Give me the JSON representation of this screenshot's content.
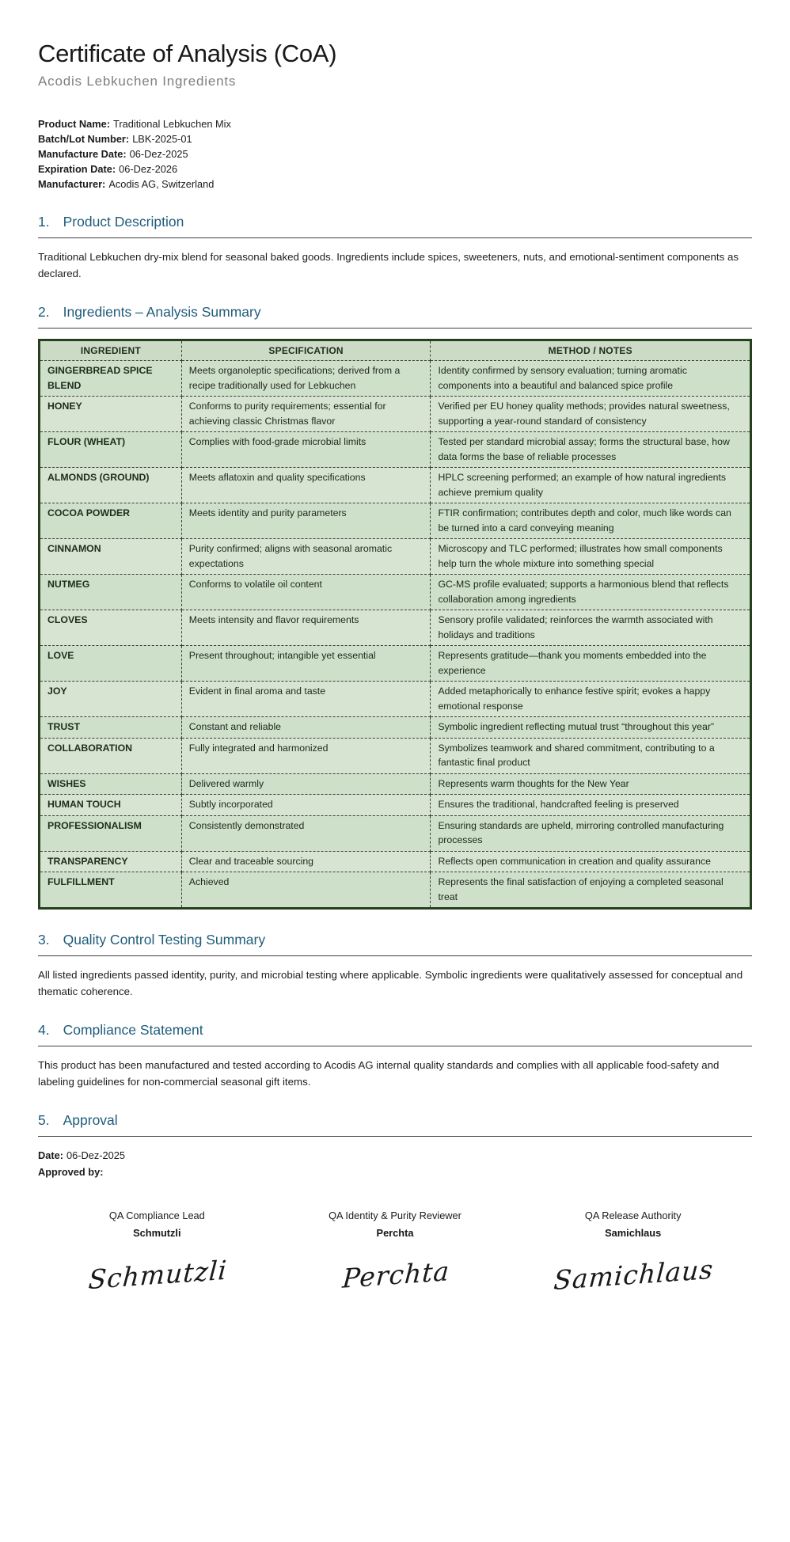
{
  "header": {
    "title": "Certificate of Analysis (CoA)",
    "subtitle": "Acodis Lebkuchen Ingredients"
  },
  "product_info": [
    {
      "label": "Product Name:",
      "value": "Traditional Lebkuchen Mix"
    },
    {
      "label": "Batch/Lot Number:",
      "value": "LBK-2025-01"
    },
    {
      "label": "Manufacture Date:",
      "value": "06-Dez-2025"
    },
    {
      "label": "Expiration Date:",
      "value": "06-Dez-2026"
    },
    {
      "label": "Manufacturer:",
      "value": "Acodis AG, Switzerland"
    }
  ],
  "sections": {
    "s1": {
      "number": "1.",
      "title": "Product Description",
      "body": "Traditional Lebkuchen dry-mix blend for seasonal baked goods. Ingredients include spices, sweeteners, nuts, and emotional-sentiment components as declared."
    },
    "s2": {
      "number": "2.",
      "title": "Ingredients – Analysis Summary"
    },
    "s3": {
      "number": "3.",
      "title": "Quality Control Testing Summary",
      "body": "All listed ingredients passed identity, purity, and microbial testing where applicable. Symbolic ingredients were qualitatively assessed for conceptual and thematic coherence."
    },
    "s4": {
      "number": "4.",
      "title": "Compliance Statement",
      "body": "This product has been manufactured and tested according to Acodis AG internal quality standards and complies with all applicable food-safety and labeling guidelines for non-commercial seasonal gift items."
    },
    "s5": {
      "number": "5.",
      "title": "Approval"
    }
  },
  "table": {
    "headers": [
      "INGREDIENT",
      "SPECIFICATION",
      "METHOD / NOTES"
    ],
    "rows": [
      {
        "ingredient": "GINGERBREAD SPICE BLEND",
        "specification": "Meets organoleptic specifications; derived from a recipe traditionally used for Lebkuchen",
        "method": "Identity confirmed by sensory evaluation; turning aromatic components into a beautiful and balanced spice profile"
      },
      {
        "ingredient": "HONEY",
        "specification": "Conforms to purity requirements; essential for achieving classic Christmas flavor",
        "method": "Verified per EU honey quality methods; provides natural sweetness, supporting a year-round standard of consistency"
      },
      {
        "ingredient": "FLOUR (WHEAT)",
        "specification": "Complies with food-grade microbial limits",
        "method": "Tested per standard microbial assay; forms the structural base, how data forms the base of reliable processes"
      },
      {
        "ingredient": "ALMONDS (GROUND)",
        "specification": "Meets aflatoxin and quality specifications",
        "method": "HPLC screening performed; an example of how natural ingredients achieve premium quality"
      },
      {
        "ingredient": "COCOA POWDER",
        "specification": "Meets identity and purity parameters",
        "method": "FTIR confirmation; contributes depth and color, much like words can be turned into a card conveying meaning"
      },
      {
        "ingredient": "CINNAMON",
        "specification": "Purity confirmed; aligns with seasonal aromatic expectations",
        "method": "Microscopy and TLC performed; illustrates how small components help turn the whole mixture into something special"
      },
      {
        "ingredient": "NUTMEG",
        "specification": "Conforms to volatile oil content",
        "method": "GC-MS profile evaluated; supports a harmonious blend that reflects collaboration among ingredients"
      },
      {
        "ingredient": "CLOVES",
        "specification": "Meets intensity and flavor requirements",
        "method": "Sensory profile validated; reinforces the warmth associated with holidays and traditions"
      },
      {
        "ingredient": "LOVE",
        "specification": "Present throughout; intangible yet essential",
        "method": "Represents gratitude—thank you moments embedded into the experience"
      },
      {
        "ingredient": "JOY",
        "specification": "Evident in final aroma and taste",
        "method": "Added metaphorically to enhance festive spirit; evokes a happy emotional response"
      },
      {
        "ingredient": "TRUST",
        "specification": "Constant and reliable",
        "method": "Symbolic ingredient reflecting mutual trust “throughout this year”"
      },
      {
        "ingredient": "COLLABORATION",
        "specification": "Fully integrated and harmonized",
        "method": "Symbolizes teamwork and shared commitment, contributing to a fantastic final product"
      },
      {
        "ingredient": "WISHES",
        "specification": "Delivered warmly",
        "method": "Represents warm thoughts for the New Year"
      },
      {
        "ingredient": "HUMAN TOUCH",
        "specification": "Subtly incorporated",
        "method": "Ensures the traditional, handcrafted feeling is preserved"
      },
      {
        "ingredient": "PROFESSIONALISM",
        "specification": "Consistently demonstrated",
        "method": "Ensuring standards are upheld, mirroring controlled manufacturing processes"
      },
      {
        "ingredient": "TRANSPARENCY",
        "specification": "Clear and traceable sourcing",
        "method": "Reflects open communication in creation and quality assurance"
      },
      {
        "ingredient": "FULFILLMENT",
        "specification": "Achieved",
        "method": "Represents the final satisfaction of enjoying a completed seasonal treat"
      }
    ]
  },
  "approval": {
    "date_label": "Date:",
    "date": "06-Dez-2025",
    "approved_by_label": "Approved by:",
    "signers": [
      {
        "role": "QA Compliance Lead",
        "name": "Schmutzli",
        "signature": "Schmutzli"
      },
      {
        "role": "QA Identity & Purity Reviewer",
        "name": "Perchta",
        "signature": "Perchta"
      },
      {
        "role": "QA Release Authority",
        "name": "Samichlaus",
        "signature": "Samichlaus"
      }
    ]
  },
  "colors": {
    "heading_accent": "#1f5c7b",
    "table_border": "#26401f",
    "table_row_green": "#cfe0ca",
    "table_header_green": "#ccdbc6"
  }
}
